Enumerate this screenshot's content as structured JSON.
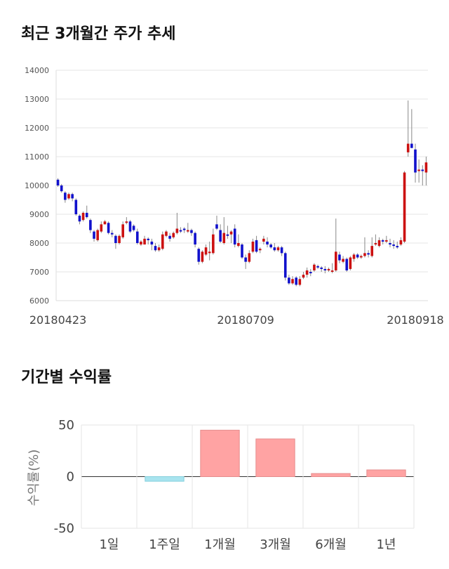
{
  "sections": {
    "price_title": "최근 3개월간 주가 추세",
    "return_title": "기간별 수익률"
  },
  "chart_data": [
    {
      "type": "candlestick",
      "title": "최근 3개월간 주가 추세",
      "ylim": [
        6000,
        14000
      ],
      "yticks": [
        6000,
        7000,
        8000,
        9000,
        10000,
        11000,
        12000,
        13000,
        14000
      ],
      "xtick_labels": [
        {
          "label": "20180423",
          "index": 0
        },
        {
          "label": "20180709",
          "index": 52
        },
        {
          "label": "20180918",
          "index": 99
        }
      ],
      "grid": true,
      "colors": {
        "up": "#cc1111",
        "down": "#1111cc",
        "wick": "#888888"
      },
      "candles": [
        [
          10200,
          10250,
          9950,
          10000
        ],
        [
          10000,
          10050,
          9750,
          9800
        ],
        [
          9750,
          9800,
          9400,
          9500
        ],
        [
          9550,
          9750,
          9500,
          9700
        ],
        [
          9700,
          9750,
          9450,
          9550
        ],
        [
          9500,
          9550,
          8950,
          9000
        ],
        [
          8950,
          9000,
          8650,
          8750
        ],
        [
          8800,
          9100,
          8750,
          9050
        ],
        [
          9050,
          9300,
          8850,
          8900
        ],
        [
          8800,
          8850,
          8350,
          8450
        ],
        [
          8400,
          8450,
          8050,
          8150
        ],
        [
          8100,
          8500,
          8050,
          8450
        ],
        [
          8400,
          8750,
          8350,
          8650
        ],
        [
          8650,
          8800,
          8650,
          8750
        ],
        [
          8700,
          8750,
          8300,
          8350
        ],
        [
          8350,
          8450,
          8200,
          8300
        ],
        [
          8250,
          8300,
          7800,
          8000
        ],
        [
          8000,
          8300,
          7950,
          8250
        ],
        [
          8200,
          8750,
          8150,
          8650
        ],
        [
          8700,
          8900,
          8650,
          8750
        ],
        [
          8750,
          8800,
          8350,
          8400
        ],
        [
          8600,
          8650,
          8400,
          8450
        ],
        [
          8400,
          8500,
          7950,
          8000
        ],
        [
          7950,
          8100,
          7900,
          8050
        ],
        [
          7950,
          8250,
          7950,
          8150
        ],
        [
          8150,
          8200,
          7950,
          8100
        ],
        [
          8050,
          8150,
          7750,
          7950
        ],
        [
          7900,
          8000,
          7700,
          7750
        ],
        [
          7750,
          7950,
          7700,
          7850
        ],
        [
          7800,
          8400,
          7750,
          8300
        ],
        [
          8250,
          8450,
          8200,
          8400
        ],
        [
          8250,
          8350,
          8050,
          8150
        ],
        [
          8200,
          8400,
          8150,
          8350
        ],
        [
          8350,
          9050,
          8300,
          8500
        ],
        [
          8450,
          8550,
          8350,
          8400
        ],
        [
          8500,
          8550,
          8350,
          8450
        ],
        [
          8400,
          8700,
          8350,
          8450
        ],
        [
          8450,
          8500,
          8250,
          8350
        ],
        [
          8350,
          8400,
          7850,
          7950
        ],
        [
          7800,
          7850,
          7250,
          7350
        ],
        [
          7350,
          7750,
          7300,
          7700
        ],
        [
          7600,
          7950,
          7550,
          7850
        ],
        [
          7650,
          8050,
          7400,
          7700
        ],
        [
          7650,
          8500,
          7600,
          8300
        ],
        [
          8650,
          8950,
          8450,
          8500
        ],
        [
          8450,
          8650,
          8000,
          8050
        ],
        [
          8000,
          8900,
          7950,
          8350
        ],
        [
          8300,
          8600,
          8150,
          8250
        ],
        [
          8300,
          8450,
          8000,
          8400
        ],
        [
          8500,
          8650,
          7850,
          7950
        ],
        [
          7900,
          8300,
          7850,
          8000
        ],
        [
          7950,
          8000,
          7450,
          7500
        ],
        [
          7500,
          7600,
          7100,
          7350
        ],
        [
          7350,
          7750,
          7300,
          7650
        ],
        [
          7700,
          8150,
          7650,
          8050
        ],
        [
          8100,
          8250,
          7650,
          7700
        ],
        [
          7750,
          7850,
          7650,
          7800
        ],
        [
          8050,
          8250,
          7950,
          8150
        ],
        [
          8050,
          8200,
          7850,
          7950
        ],
        [
          7950,
          8000,
          7800,
          7850
        ],
        [
          7850,
          8000,
          7700,
          7750
        ],
        [
          7750,
          7900,
          7700,
          7850
        ],
        [
          7850,
          7900,
          7550,
          7650
        ],
        [
          7650,
          7700,
          6700,
          6800
        ],
        [
          6800,
          6900,
          6550,
          6600
        ],
        [
          6600,
          6850,
          6550,
          6750
        ],
        [
          6800,
          6850,
          6500,
          6550
        ],
        [
          6550,
          6850,
          6500,
          6750
        ],
        [
          6800,
          7000,
          6750,
          6900
        ],
        [
          6900,
          7150,
          6800,
          7050
        ],
        [
          7000,
          7100,
          6850,
          6950
        ],
        [
          7050,
          7300,
          7000,
          7250
        ],
        [
          7200,
          7250,
          7100,
          7150
        ],
        [
          7150,
          7200,
          7000,
          7100
        ],
        [
          7100,
          7200,
          6950,
          7050
        ],
        [
          7050,
          7150,
          7000,
          7100
        ],
        [
          7000,
          7300,
          6950,
          7050
        ],
        [
          7050,
          8850,
          7000,
          7700
        ],
        [
          7600,
          7700,
          7300,
          7400
        ],
        [
          7350,
          7550,
          7300,
          7450
        ],
        [
          7450,
          7500,
          7000,
          7050
        ],
        [
          7100,
          7550,
          7050,
          7500
        ],
        [
          7450,
          7650,
          7350,
          7600
        ],
        [
          7600,
          7650,
          7450,
          7500
        ],
        [
          7500,
          7600,
          7450,
          7550
        ],
        [
          7550,
          8200,
          7500,
          7650
        ],
        [
          7650,
          7750,
          7500,
          7600
        ],
        [
          7550,
          8200,
          7500,
          7900
        ],
        [
          7950,
          8300,
          7900,
          8000
        ],
        [
          7900,
          8200,
          7850,
          8100
        ],
        [
          8100,
          8150,
          7950,
          8050
        ],
        [
          8050,
          8250,
          8000,
          8100
        ],
        [
          8000,
          8150,
          7850,
          7950
        ],
        [
          7950,
          8100,
          7800,
          7900
        ],
        [
          7900,
          8050,
          7800,
          7850
        ],
        [
          7950,
          8200,
          7900,
          8100
        ],
        [
          8050,
          10500,
          8000,
          10450
        ],
        [
          11150,
          12950,
          11000,
          11450
        ],
        [
          11450,
          12650,
          11300,
          11300
        ],
        [
          11250,
          11450,
          10100,
          10450
        ],
        [
          10500,
          10900,
          10100,
          10550
        ],
        [
          10550,
          10700,
          10000,
          10500
        ],
        [
          10450,
          11000,
          10000,
          10800
        ]
      ]
    },
    {
      "type": "bar",
      "title": "기간별 수익률",
      "ylabel": "수익률(%)",
      "ylim": [
        -50,
        50
      ],
      "yticks": [
        50,
        0,
        -50
      ],
      "categories": [
        "1일",
        "1주일",
        "1개월",
        "3개월",
        "6개월",
        "1년"
      ],
      "values": [
        0,
        -4.5,
        45,
        36.5,
        3,
        6.5
      ],
      "grid": true,
      "colors": {
        "positive": "#ffa3a3",
        "negative": "#a8e4ef",
        "positive_edge": "#e58c8c",
        "negative_edge": "#86cfdc"
      }
    }
  ]
}
